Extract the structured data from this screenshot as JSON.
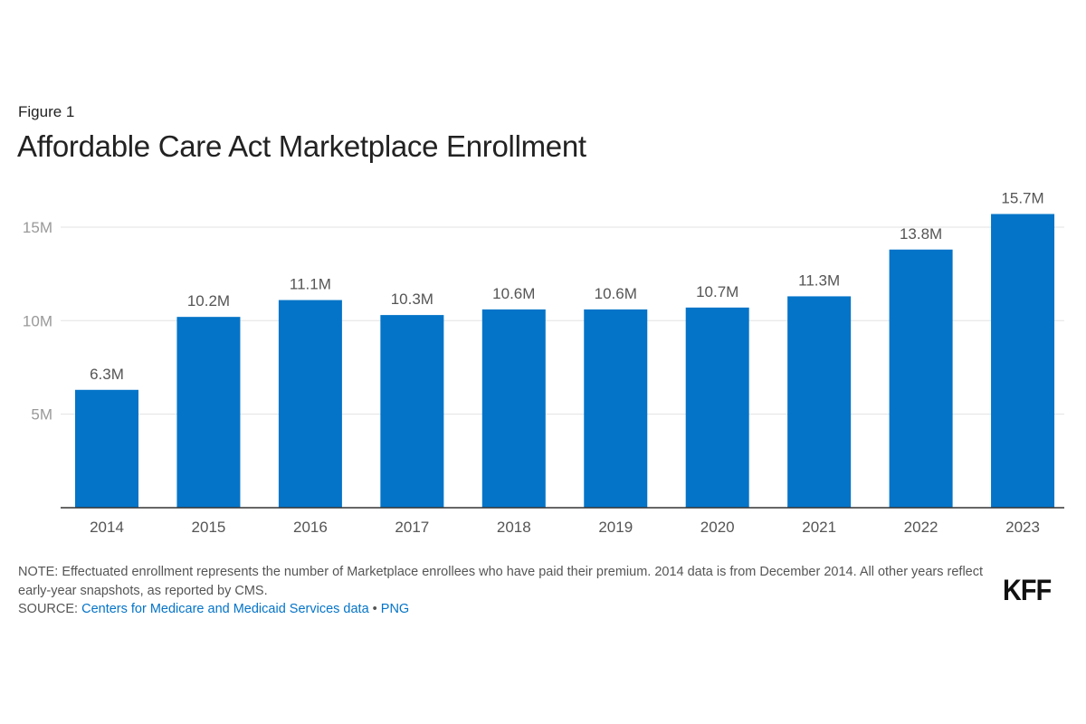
{
  "header": {
    "figure_label": "Figure 1",
    "title": "Affordable Care Act Marketplace Enrollment"
  },
  "chart_data": {
    "type": "bar",
    "title": "Affordable Care Act Marketplace Enrollment",
    "categories": [
      "2014",
      "2015",
      "2016",
      "2017",
      "2018",
      "2019",
      "2020",
      "2021",
      "2022",
      "2023"
    ],
    "values": [
      6.3,
      10.2,
      11.1,
      10.3,
      10.6,
      10.6,
      10.7,
      11.3,
      13.8,
      15.7
    ],
    "data_labels": [
      "6.3M",
      "10.2M",
      "11.1M",
      "10.3M",
      "10.6M",
      "10.6M",
      "10.7M",
      "11.3M",
      "13.8M",
      "15.7M"
    ],
    "y_ticks": [
      {
        "value": 5,
        "label": "5M"
      },
      {
        "value": 10,
        "label": "10M"
      },
      {
        "value": 15,
        "label": "15M"
      }
    ],
    "ylim": [
      0,
      15.7
    ],
    "xlabel": "",
    "ylabel": "",
    "grid": true,
    "bar_color": "#0474C8"
  },
  "footer": {
    "note": "NOTE: Effectuated enrollment represents the number of Marketplace enrollees who have paid their premium. 2014 data is from December 2014. All other years reflect early-year snapshots, as reported by CMS.",
    "source_label": "SOURCE: ",
    "source_link": "Centers for Medicare and Medicaid Services data",
    "separator": " • ",
    "png_link": "PNG",
    "logo": "KFF"
  }
}
